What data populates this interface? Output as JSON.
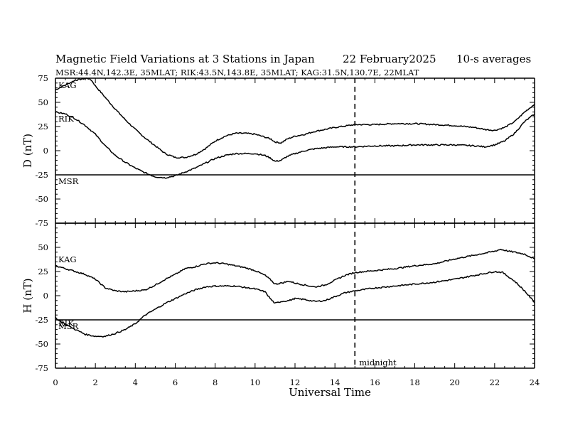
{
  "header": {
    "title": "Magnetic Field Variations at 3 Stations in Japan",
    "date": "22 February2025",
    "averaging": "10-s averages",
    "stations": "MSR:44.4N,142.3E, 35MLAT;  RIK:43.5N,143.8E, 35MLAT;  KAG:31.5N,130.7E, 22MLAT"
  },
  "colors": {
    "trace": "#000000",
    "background": "#ffffff"
  },
  "chart_data": [
    {
      "type": "line",
      "panel": "top",
      "ylabel": "D (nT)",
      "xlabel": "",
      "xlim": [
        0,
        24
      ],
      "ylim": [
        -75,
        75
      ],
      "xticks": [
        0,
        2,
        4,
        6,
        8,
        10,
        12,
        14,
        16,
        18,
        20,
        22,
        24
      ],
      "yticks": [
        -75,
        -50,
        -25,
        0,
        25,
        50,
        75
      ],
      "marker_line": {
        "x": 15,
        "style": "dashed"
      },
      "series": [
        {
          "name": "KAG",
          "points": [
            [
              0,
              63
            ],
            [
              0.3,
              66
            ],
            [
              0.7,
              70
            ],
            [
              1.0,
              73
            ],
            [
              1.3,
              74
            ],
            [
              1.6,
              75
            ],
            [
              1.8,
              73
            ],
            [
              2.0,
              67
            ],
            [
              2.5,
              55
            ],
            [
              3.0,
              43
            ],
            [
              3.5,
              32
            ],
            [
              4.0,
              22
            ],
            [
              4.5,
              13
            ],
            [
              5.0,
              5
            ],
            [
              5.5,
              -3
            ],
            [
              6.0,
              -7
            ],
            [
              6.5,
              -7
            ],
            [
              7.0,
              -4
            ],
            [
              7.5,
              2
            ],
            [
              8.0,
              10
            ],
            [
              8.5,
              15
            ],
            [
              9.0,
              18
            ],
            [
              9.5,
              18
            ],
            [
              10.0,
              17
            ],
            [
              10.5,
              14
            ],
            [
              10.8,
              12
            ],
            [
              11.0,
              9
            ],
            [
              11.3,
              8
            ],
            [
              11.6,
              12
            ],
            [
              12.0,
              15
            ],
            [
              12.5,
              17
            ],
            [
              13.0,
              20
            ],
            [
              13.5,
              22
            ],
            [
              14.0,
              24
            ],
            [
              15.0,
              27
            ],
            [
              16.0,
              27
            ],
            [
              17.0,
              28
            ],
            [
              18.0,
              28
            ],
            [
              19.0,
              27
            ],
            [
              20.0,
              26
            ],
            [
              21.0,
              24
            ],
            [
              21.5,
              22
            ],
            [
              22.0,
              21
            ],
            [
              22.5,
              24
            ],
            [
              23.0,
              30
            ],
            [
              23.5,
              40
            ],
            [
              24.0,
              48
            ]
          ]
        },
        {
          "name": "RIK",
          "points": [
            [
              0,
              40
            ],
            [
              0.5,
              38
            ],
            [
              1.0,
              33
            ],
            [
              1.5,
              26
            ],
            [
              2.0,
              17
            ],
            [
              2.5,
              5
            ],
            [
              3.0,
              -5
            ],
            [
              3.5,
              -12
            ],
            [
              4.0,
              -18
            ],
            [
              4.5,
              -23
            ],
            [
              5.0,
              -27
            ],
            [
              5.5,
              -28
            ],
            [
              6.0,
              -26
            ],
            [
              6.5,
              -22
            ],
            [
              7.0,
              -18
            ],
            [
              7.5,
              -13
            ],
            [
              8.0,
              -8
            ],
            [
              8.5,
              -5
            ],
            [
              9.0,
              -3
            ],
            [
              9.5,
              -3
            ],
            [
              10.0,
              -3
            ],
            [
              10.5,
              -5
            ],
            [
              10.8,
              -8
            ],
            [
              11.0,
              -11
            ],
            [
              11.3,
              -10
            ],
            [
              11.6,
              -6
            ],
            [
              12.0,
              -3
            ],
            [
              12.5,
              0
            ],
            [
              13.0,
              2
            ],
            [
              13.5,
              3
            ],
            [
              14.0,
              4
            ],
            [
              15.0,
              4
            ],
            [
              16.0,
              5
            ],
            [
              17.0,
              5
            ],
            [
              18.0,
              6
            ],
            [
              19.0,
              6
            ],
            [
              20.0,
              6
            ],
            [
              21.0,
              5
            ],
            [
              21.5,
              4
            ],
            [
              22.0,
              6
            ],
            [
              22.5,
              10
            ],
            [
              23.0,
              18
            ],
            [
              23.5,
              30
            ],
            [
              24.0,
              38
            ]
          ]
        }
      ],
      "labels": [
        "KAG",
        "RIK",
        "MSR"
      ],
      "baseline": {
        "name": "MSR",
        "y": -25
      }
    },
    {
      "type": "line",
      "panel": "bottom",
      "ylabel": "H (nT)",
      "xlabel": "Universal Time",
      "xlim": [
        0,
        24
      ],
      "ylim": [
        -75,
        75
      ],
      "xticks": [
        0,
        2,
        4,
        6,
        8,
        10,
        12,
        14,
        16,
        18,
        20,
        22,
        24
      ],
      "yticks": [
        -75,
        -50,
        -25,
        0,
        25,
        50,
        75
      ],
      "marker_line": {
        "x": 15,
        "style": "dashed"
      },
      "marker_text": "midnight",
      "series": [
        {
          "name": "KAG",
          "points": [
            [
              0,
              31
            ],
            [
              0.5,
              28
            ],
            [
              1.0,
              25
            ],
            [
              1.5,
              22
            ],
            [
              2.0,
              17
            ],
            [
              2.5,
              8
            ],
            [
              3.0,
              5
            ],
            [
              3.5,
              4
            ],
            [
              4.0,
              5
            ],
            [
              4.5,
              6
            ],
            [
              5.0,
              11
            ],
            [
              5.5,
              17
            ],
            [
              6.0,
              22
            ],
            [
              6.5,
              28
            ],
            [
              7.0,
              30
            ],
            [
              7.5,
              33
            ],
            [
              8.0,
              34
            ],
            [
              8.5,
              33
            ],
            [
              9.0,
              31
            ],
            [
              9.5,
              29
            ],
            [
              10.0,
              26
            ],
            [
              10.5,
              21
            ],
            [
              10.8,
              16
            ],
            [
              11.0,
              12
            ],
            [
              11.3,
              13
            ],
            [
              11.7,
              15
            ],
            [
              12.0,
              13
            ],
            [
              12.5,
              11
            ],
            [
              13.0,
              9
            ],
            [
              13.5,
              11
            ],
            [
              14.0,
              16
            ],
            [
              14.5,
              21
            ],
            [
              15.0,
              24
            ],
            [
              16.0,
              26
            ],
            [
              17.0,
              28
            ],
            [
              18.0,
              31
            ],
            [
              19.0,
              33
            ],
            [
              20.0,
              38
            ],
            [
              21.0,
              42
            ],
            [
              22.0,
              46
            ],
            [
              22.3,
              48
            ],
            [
              22.7,
              46
            ],
            [
              23.0,
              45
            ],
            [
              23.5,
              43
            ],
            [
              24.0,
              38
            ]
          ]
        },
        {
          "name": "RIK",
          "points": [
            [
              0,
              -23
            ],
            [
              0.3,
              -27
            ],
            [
              0.8,
              -33
            ],
            [
              1.5,
              -40
            ],
            [
              2.0,
              -42
            ],
            [
              2.5,
              -42
            ],
            [
              3.0,
              -39
            ],
            [
              3.5,
              -35
            ],
            [
              4.0,
              -29
            ],
            [
              4.5,
              -20
            ],
            [
              5.0,
              -14
            ],
            [
              5.5,
              -8
            ],
            [
              6.0,
              -3
            ],
            [
              6.5,
              2
            ],
            [
              7.0,
              6
            ],
            [
              7.5,
              9
            ],
            [
              8.0,
              10
            ],
            [
              9.0,
              10
            ],
            [
              10.0,
              7
            ],
            [
              10.5,
              4
            ],
            [
              10.8,
              -4
            ],
            [
              11.0,
              -8
            ],
            [
              11.3,
              -6
            ],
            [
              11.7,
              -5
            ],
            [
              12.0,
              -3
            ],
            [
              12.5,
              -4
            ],
            [
              13.0,
              -6
            ],
            [
              13.5,
              -5
            ],
            [
              14.0,
              -1
            ],
            [
              14.5,
              3
            ],
            [
              15.0,
              5
            ],
            [
              16.0,
              8
            ],
            [
              17.0,
              10
            ],
            [
              18.0,
              12
            ],
            [
              19.0,
              14
            ],
            [
              20.0,
              17
            ],
            [
              21.0,
              21
            ],
            [
              22.0,
              25
            ],
            [
              22.4,
              24
            ],
            [
              23.0,
              15
            ],
            [
              23.5,
              5
            ],
            [
              24.0,
              -7
            ]
          ]
        }
      ],
      "labels": [
        "KAG",
        "RIK",
        "MSR"
      ],
      "baseline": {
        "name": "MSR",
        "y": -25
      }
    }
  ]
}
